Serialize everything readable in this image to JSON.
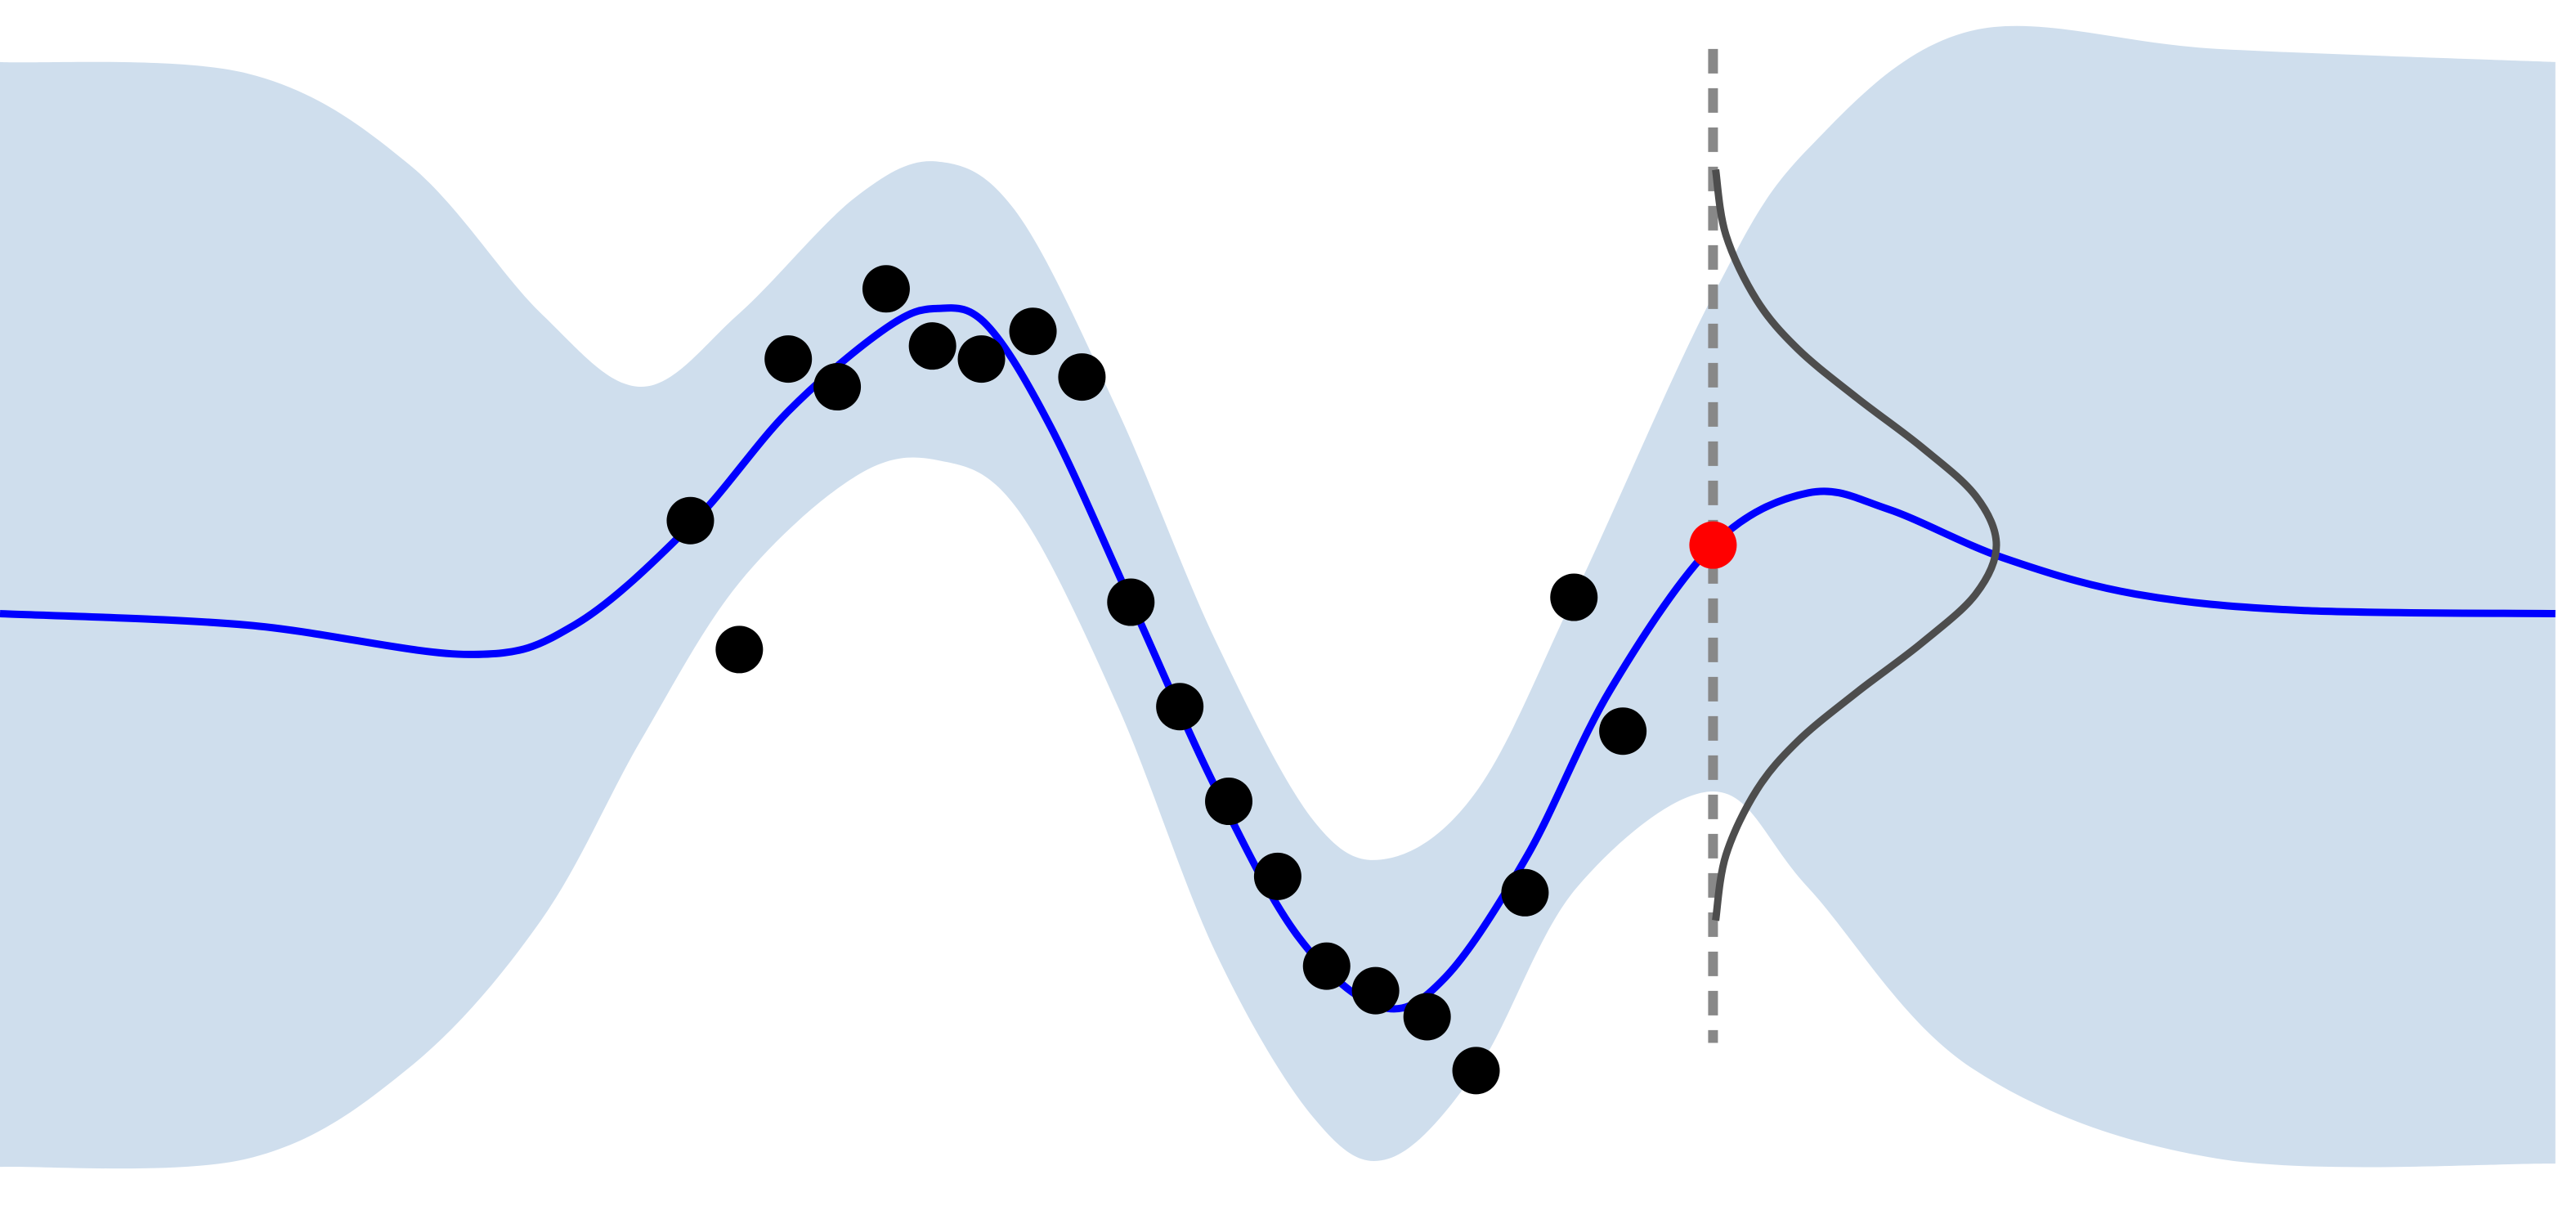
{
  "chart_data": {
    "type": "gp",
    "xlim": [
      0,
      10
    ],
    "ylim": [
      -3.75,
      3.75
    ],
    "series": [
      {
        "kind": "band",
        "color": "#cfdeed",
        "x": [
          0,
          0.96,
          1.59,
          2.1,
          2.49,
          2.87,
          3.32,
          3.64,
          3.95,
          4.34,
          4.72,
          5.1,
          5.39,
          5.74,
          6.12,
          6.65,
          7.02,
          7.65,
          8.61,
          9.92
        ],
        "upper": [
          3.37,
          3.3,
          2.74,
          1.83,
          1.38,
          1.83,
          2.54,
          2.76,
          2.44,
          1.23,
          -0.18,
          -1.28,
          -1.51,
          -1.08,
          0.13,
          1.94,
          2.84,
          3.56,
          3.45,
          3.37
        ],
        "lower": [
          -3.4,
          -3.35,
          -2.79,
          -1.89,
          -0.78,
          0.18,
          0.83,
          0.93,
          0.63,
          -0.58,
          -2.09,
          -3.1,
          -3.35,
          -2.79,
          -1.69,
          -1.1,
          -1.69,
          -2.79,
          -3.35,
          -3.38
        ]
      },
      {
        "kind": "line",
        "color": "#888888",
        "dashed": true,
        "x": [
          6.65,
          6.65
        ],
        "values": [
          3.45,
          -2.64
        ]
      },
      {
        "kind": "line",
        "color": "#0000ff",
        "x": [
          0,
          0.96,
          1.82,
          2.23,
          2.68,
          3.06,
          3.44,
          3.64,
          3.83,
          4.08,
          4.4,
          4.72,
          5.04,
          5.36,
          5.61,
          5.93,
          6.25,
          6.65,
          7.02,
          7.33,
          7.78,
          8.29,
          8.93,
          9.92
        ],
        "values": [
          -0.01,
          -0.08,
          -0.26,
          -0.08,
          0.53,
          1.23,
          1.74,
          1.86,
          1.76,
          1.13,
          0.03,
          -1.08,
          -1.99,
          -2.42,
          -2.24,
          -1.49,
          -0.48,
          0.41,
          0.73,
          0.63,
          0.33,
          0.11,
          0.01,
          -0.01
        ]
      },
      {
        "kind": "line",
        "color": "#4d4d4d",
        "x": [
          6.66,
          6.7,
          6.82,
          6.98,
          7.21,
          7.46,
          7.67,
          7.75,
          7.67,
          7.46,
          7.21,
          6.98,
          6.82,
          6.7,
          6.66
        ],
        "values": [
          2.71,
          2.31,
          1.91,
          1.61,
          1.31,
          1.01,
          0.71,
          0.41,
          0.11,
          -0.19,
          -0.49,
          -0.79,
          -1.09,
          -1.49,
          -1.89
        ]
      },
      {
        "kind": "scatter",
        "color": "#000000",
        "x": [
          2.68,
          2.87,
          3.06,
          3.25,
          3.44,
          3.62,
          3.81,
          4.01,
          4.2,
          4.39,
          4.58,
          4.77,
          4.96,
          5.15,
          5.34,
          5.54,
          5.73,
          5.92,
          6.11,
          6.3
        ],
        "values": [
          0.56,
          -0.23,
          1.55,
          1.38,
          1.98,
          1.63,
          1.55,
          1.72,
          1.44,
          0.06,
          -0.58,
          -1.16,
          -1.62,
          -2.17,
          -2.32,
          -2.48,
          -2.81,
          -1.72,
          0.09,
          -0.73
        ]
      },
      {
        "kind": "scatter",
        "color": "#ff0000",
        "x": [
          6.65
        ],
        "values": [
          0.41
        ]
      }
    ]
  }
}
